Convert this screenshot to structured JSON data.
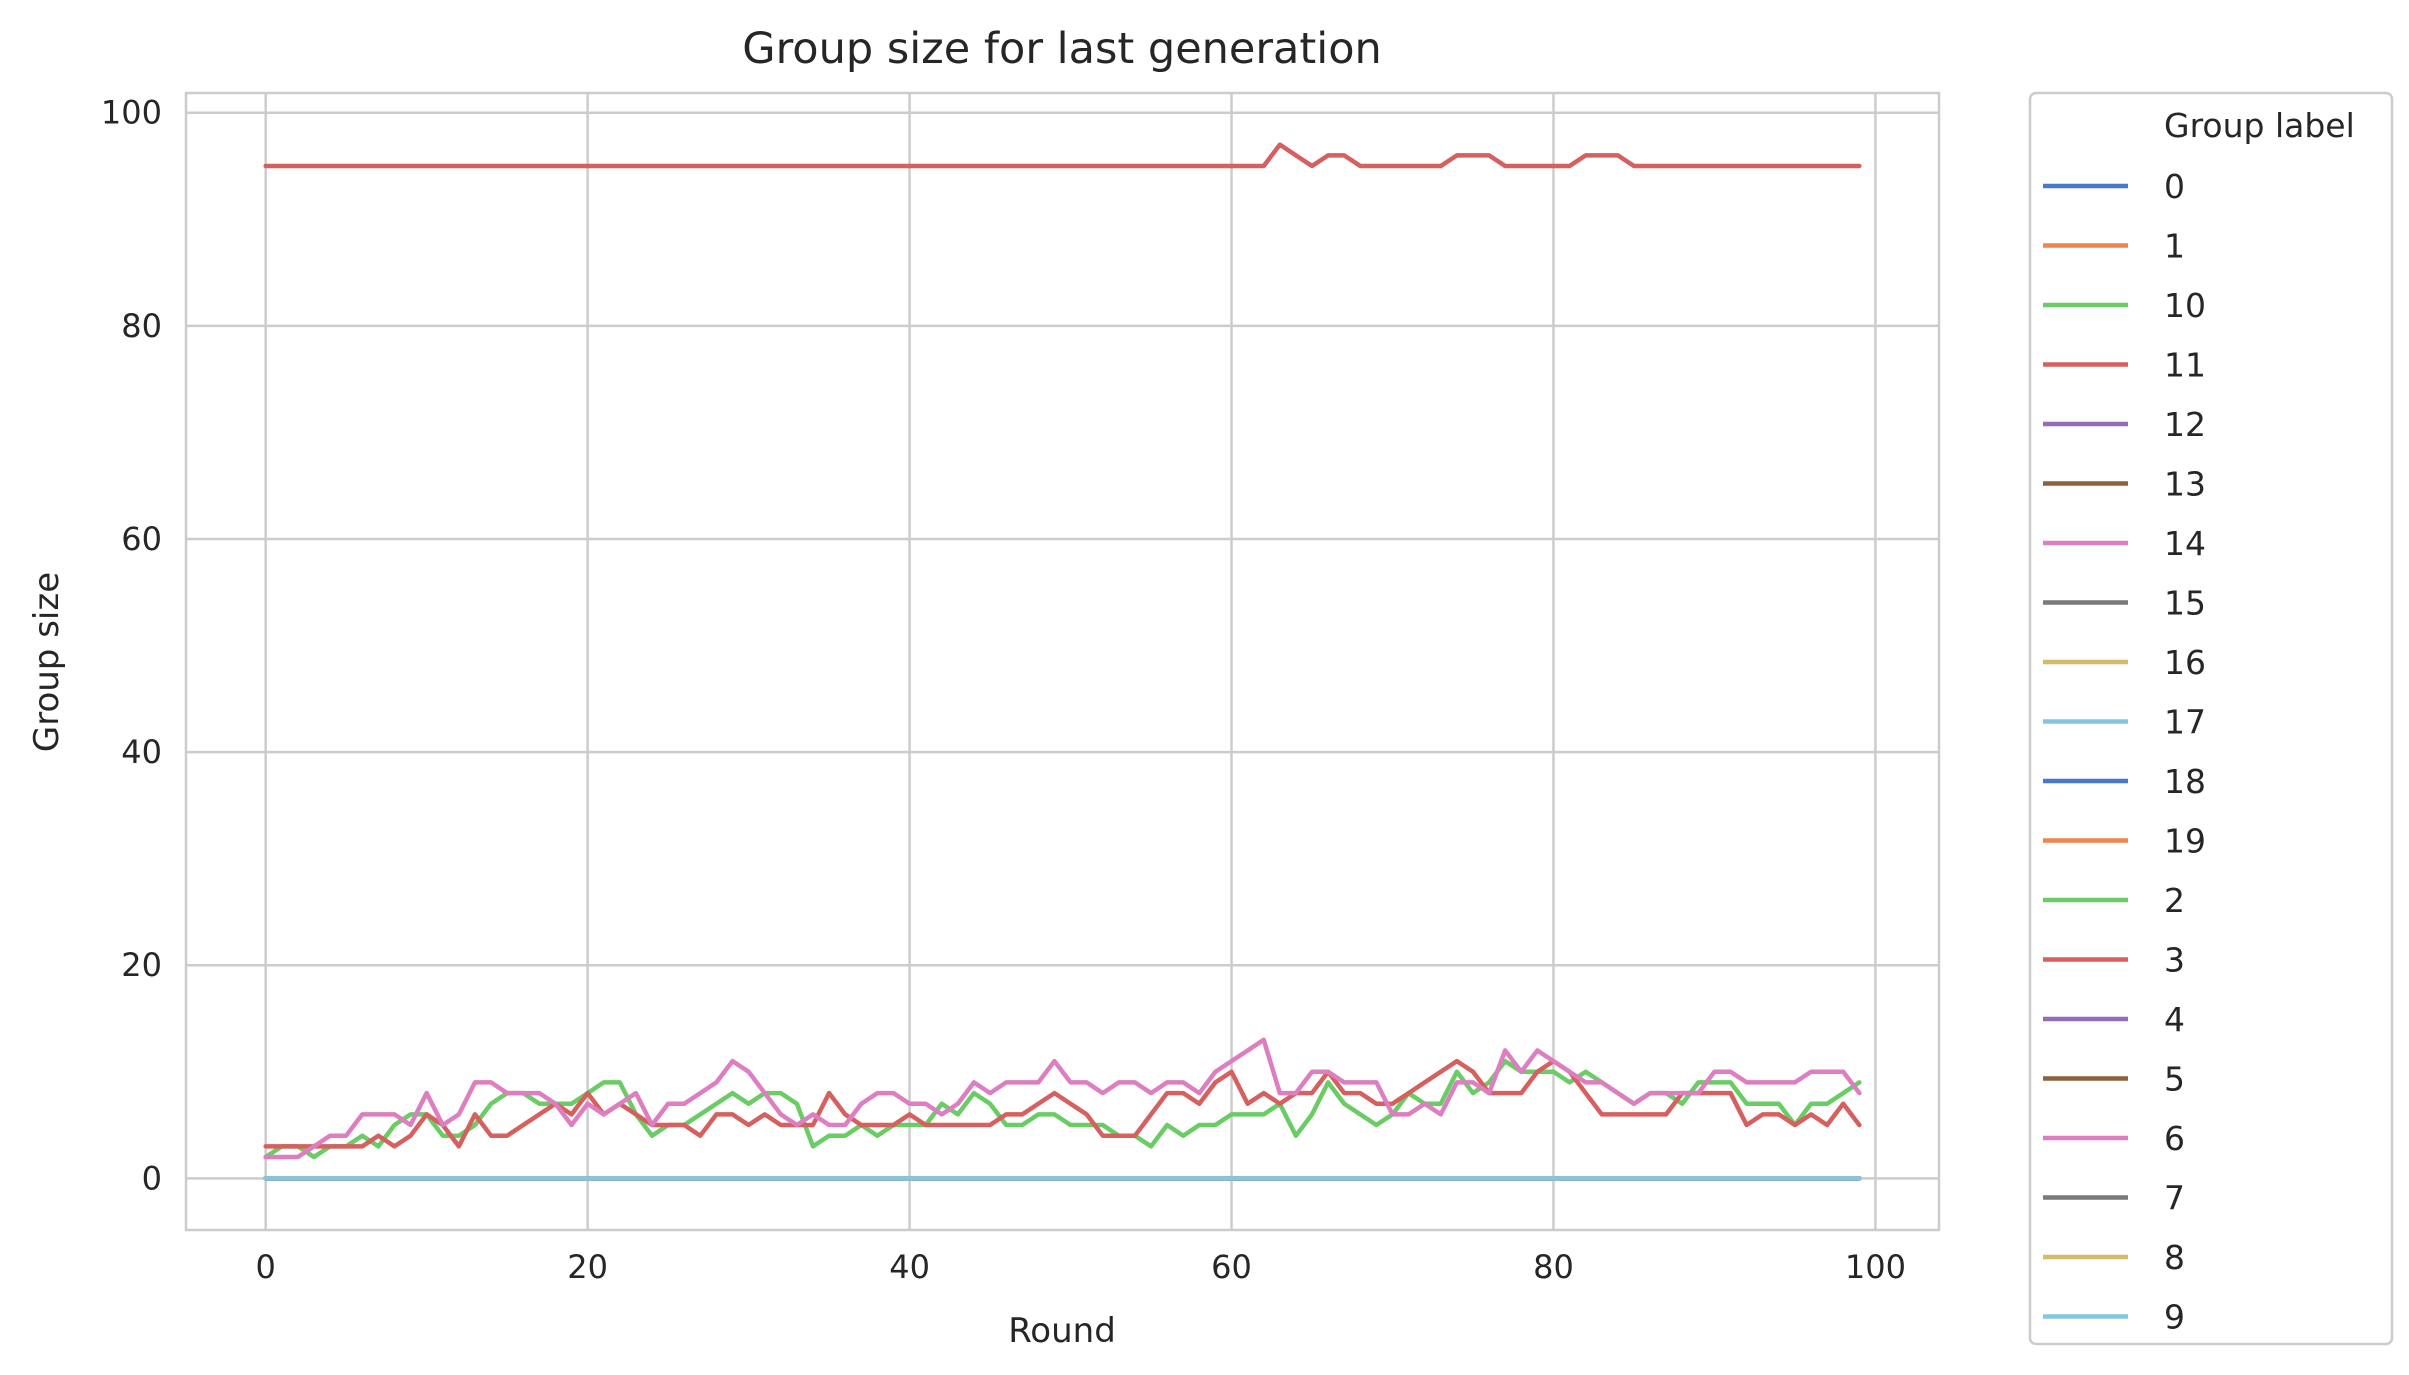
{
  "chart_data": {
    "type": "line",
    "title": "Group size for last generation",
    "xlabel": "Round",
    "ylabel": "Group size",
    "xlim": [
      -4.95,
      103.95
    ],
    "ylim": [
      -4.85,
      101.85
    ],
    "xticks": [
      0,
      20,
      40,
      60,
      80,
      100
    ],
    "yticks": [
      0,
      20,
      40,
      60,
      80,
      100
    ],
    "grid": true,
    "legend": {
      "title": "Group label",
      "placement": "outside-right"
    },
    "x": [
      0,
      1,
      2,
      3,
      4,
      5,
      6,
      7,
      8,
      9,
      10,
      11,
      12,
      13,
      14,
      15,
      16,
      17,
      18,
      19,
      20,
      21,
      22,
      23,
      24,
      25,
      26,
      27,
      28,
      29,
      30,
      31,
      32,
      33,
      34,
      35,
      36,
      37,
      38,
      39,
      40,
      41,
      42,
      43,
      44,
      45,
      46,
      47,
      48,
      49,
      50,
      51,
      52,
      53,
      54,
      55,
      56,
      57,
      58,
      59,
      60,
      61,
      62,
      63,
      64,
      65,
      66,
      67,
      68,
      69,
      70,
      71,
      72,
      73,
      74,
      75,
      76,
      77,
      78,
      79,
      80,
      81,
      82,
      83,
      84,
      85,
      86,
      87,
      88,
      89,
      90,
      91,
      92,
      93,
      94,
      95,
      96,
      97,
      98,
      99
    ],
    "series": [
      {
        "name": "0",
        "color": "#4878d0",
        "constant": 0
      },
      {
        "name": "1",
        "color": "#ee854a",
        "constant": 0
      },
      {
        "name": "10",
        "color": "#6acc64",
        "constant": 0
      },
      {
        "name": "11",
        "color": "#d65f5f",
        "values": [
          95,
          95,
          95,
          95,
          95,
          95,
          95,
          95,
          95,
          95,
          95,
          95,
          95,
          95,
          95,
          95,
          95,
          95,
          95,
          95,
          95,
          95,
          95,
          95,
          95,
          95,
          95,
          95,
          95,
          95,
          95,
          95,
          95,
          95,
          95,
          95,
          95,
          95,
          95,
          95,
          95,
          95,
          95,
          95,
          95,
          95,
          95,
          95,
          95,
          95,
          95,
          95,
          95,
          95,
          95,
          95,
          95,
          95,
          95,
          95,
          95,
          95,
          95,
          97,
          96,
          95,
          96,
          96,
          95,
          95,
          95,
          95,
          95,
          95,
          96,
          96,
          96,
          95,
          95,
          95,
          95,
          95,
          96,
          96,
          96,
          95,
          95,
          95,
          95,
          95,
          95,
          95,
          95,
          95,
          95,
          95,
          95,
          95,
          95,
          95
        ]
      },
      {
        "name": "12",
        "color": "#956cb4",
        "constant": 0
      },
      {
        "name": "13",
        "color": "#8c613c",
        "constant": 0
      },
      {
        "name": "14",
        "color": "#dc7ec0",
        "constant": 0
      },
      {
        "name": "15",
        "color": "#797979",
        "constant": 0
      },
      {
        "name": "16",
        "color": "#d5bb67",
        "constant": 0
      },
      {
        "name": "17",
        "color": "#82c6e2",
        "constant": 0
      },
      {
        "name": "18",
        "color": "#4878d0",
        "constant": 0
      },
      {
        "name": "19",
        "color": "#ee854a",
        "constant": 0
      },
      {
        "name": "2",
        "color": "#6acc64",
        "values": [
          2,
          3,
          3,
          2,
          3,
          3,
          4,
          3,
          5,
          6,
          6,
          4,
          4,
          5,
          7,
          8,
          8,
          7,
          7,
          7,
          8,
          9,
          9,
          6,
          4,
          5,
          5,
          6,
          7,
          8,
          7,
          8,
          8,
          7,
          3,
          4,
          4,
          5,
          4,
          5,
          5,
          5,
          7,
          6,
          8,
          7,
          5,
          5,
          6,
          6,
          5,
          5,
          5,
          4,
          4,
          3,
          5,
          4,
          5,
          5,
          6,
          6,
          6,
          7,
          4,
          6,
          9,
          7,
          6,
          5,
          6,
          8,
          7,
          7,
          10,
          8,
          9,
          11,
          10,
          10,
          10,
          9,
          10,
          9,
          8,
          7,
          8,
          8,
          7,
          9,
          9,
          9,
          7,
          7,
          7,
          5,
          7,
          7,
          8,
          9
        ]
      },
      {
        "name": "3",
        "color": "#d65f5f",
        "values": [
          3,
          3,
          3,
          3,
          3,
          3,
          3,
          4,
          3,
          4,
          6,
          5,
          3,
          6,
          4,
          4,
          5,
          6,
          7,
          6,
          8,
          6,
          7,
          6,
          5,
          5,
          5,
          4,
          6,
          6,
          5,
          6,
          5,
          5,
          5,
          8,
          6,
          5,
          5,
          5,
          6,
          5,
          5,
          5,
          5,
          5,
          6,
          6,
          7,
          8,
          7,
          6,
          4,
          4,
          4,
          6,
          8,
          8,
          7,
          9,
          10,
          7,
          8,
          7,
          8,
          8,
          10,
          8,
          8,
          7,
          7,
          8,
          9,
          10,
          11,
          10,
          8,
          8,
          8,
          10,
          11,
          10,
          8,
          6,
          6,
          6,
          6,
          6,
          8,
          8,
          8,
          8,
          5,
          6,
          6,
          5,
          6,
          5,
          7,
          5
        ]
      },
      {
        "name": "4",
        "color": "#956cb4",
        "constant": 0
      },
      {
        "name": "5",
        "color": "#8c613c",
        "constant": 0
      },
      {
        "name": "6",
        "color": "#dc7ec0",
        "values": [
          2,
          2,
          2,
          3,
          4,
          4,
          6,
          6,
          6,
          5,
          8,
          5,
          6,
          9,
          9,
          8,
          8,
          8,
          7,
          5,
          7,
          6,
          7,
          8,
          5,
          7,
          7,
          8,
          9,
          11,
          10,
          8,
          6,
          5,
          6,
          5,
          5,
          7,
          8,
          8,
          7,
          7,
          6,
          7,
          9,
          8,
          9,
          9,
          9,
          11,
          9,
          9,
          8,
          9,
          9,
          8,
          9,
          9,
          8,
          10,
          11,
          12,
          13,
          8,
          8,
          10,
          10,
          9,
          9,
          9,
          6,
          6,
          7,
          6,
          9,
          9,
          8,
          12,
          10,
          12,
          11,
          10,
          9,
          9,
          8,
          7,
          8,
          8,
          8,
          8,
          10,
          10,
          9,
          9,
          9,
          9,
          10,
          10,
          10,
          8
        ]
      },
      {
        "name": "7",
        "color": "#797979",
        "constant": 0
      },
      {
        "name": "8",
        "color": "#d5bb67",
        "constant": 0
      },
      {
        "name": "9",
        "color": "#82c6e2",
        "constant": 0
      }
    ]
  }
}
